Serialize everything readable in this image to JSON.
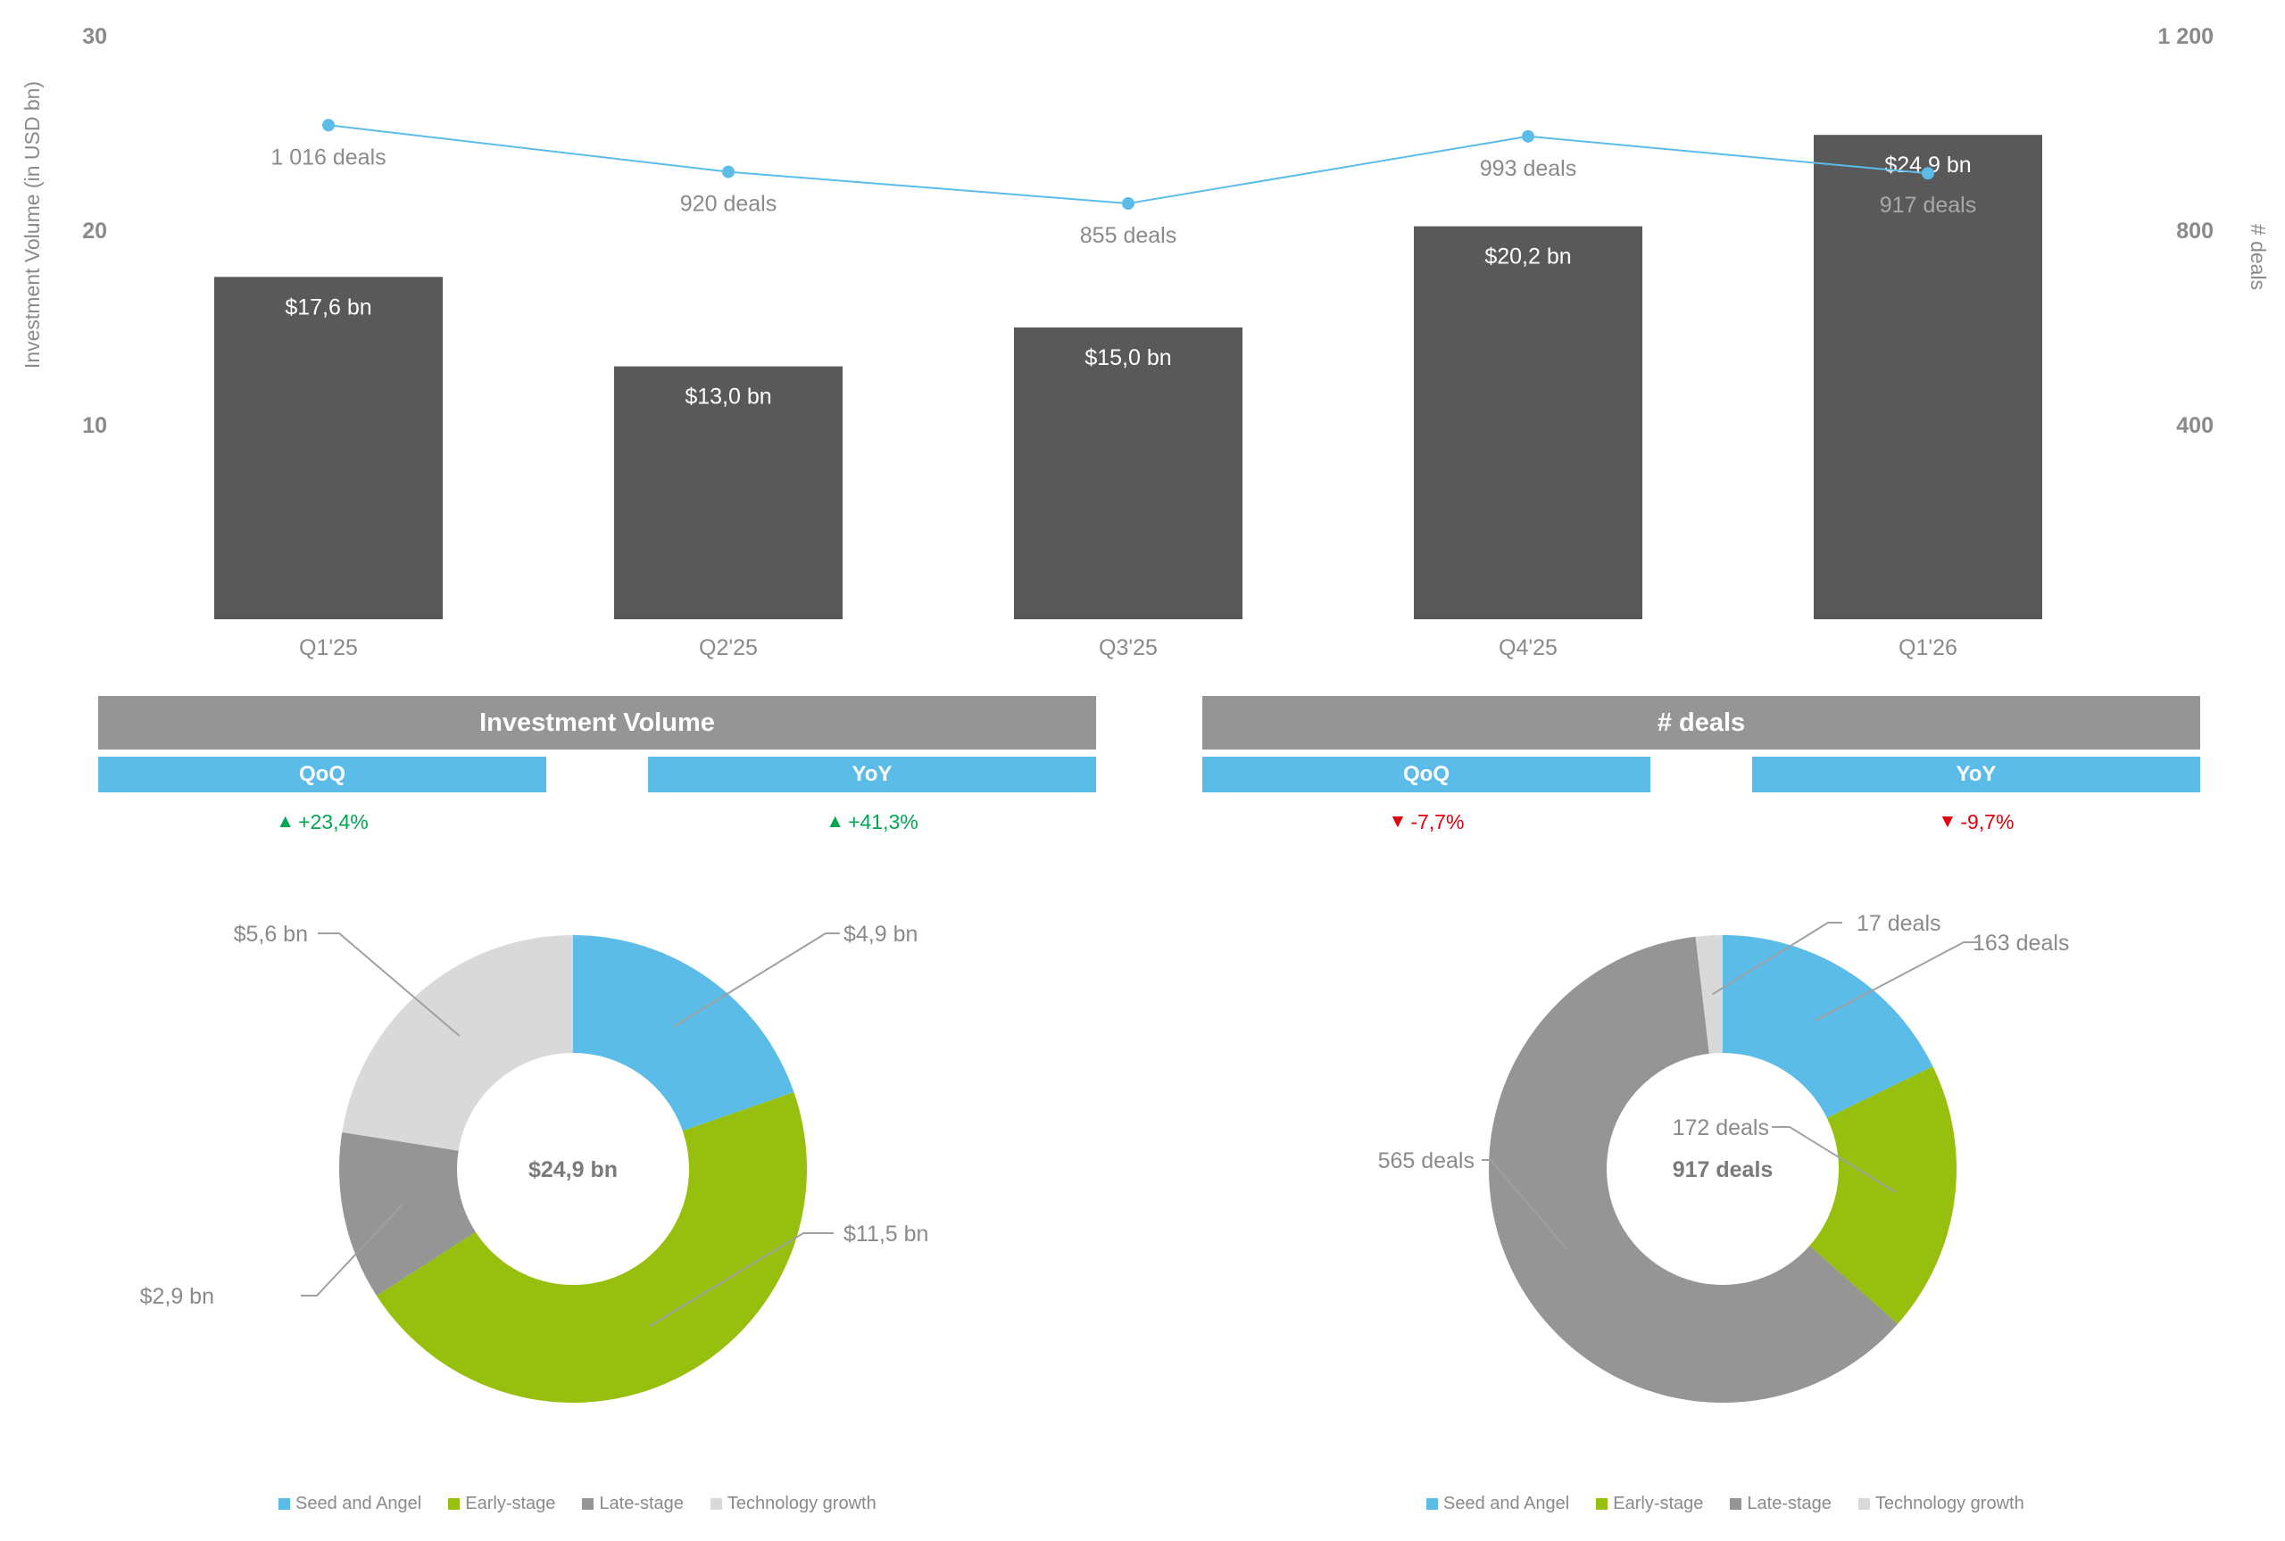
{
  "chart_data": [
    {
      "type": "bar",
      "categories": [
        "Q1'25",
        "Q2'25",
        "Q3'25",
        "Q4'25",
        "Q1'26"
      ],
      "ylabel": "Investment Volume (in USD bn)",
      "y2label": "# deals",
      "ylim": [
        0,
        30
      ],
      "y2lim": [
        0,
        1200
      ],
      "yticks": [
        "10",
        "20",
        "30"
      ],
      "y2ticks": [
        "400",
        "800",
        "1 200"
      ],
      "series": [
        {
          "type": "bar",
          "values": [
            17.6,
            13.0,
            15.0,
            20.2,
            24.9
          ],
          "labels": [
            "$17,6 bn",
            "$13,0 bn",
            "$15,0 bn",
            "$20,2 bn",
            "$24,9 bn"
          ]
        },
        {
          "type": "line",
          "axis": "right",
          "values": [
            1016,
            920,
            855,
            993,
            917
          ],
          "labels": [
            "1 016 deals",
            "920 deals",
            "855 deals",
            "993 deals",
            "917 deals"
          ]
        }
      ],
      "colors": {
        "bar": "#595959",
        "line": "#5bbce8"
      }
    },
    {
      "type": "pie",
      "variant": "donut",
      "center_label": "$24,9 bn",
      "slices": [
        {
          "name": "Seed and Angel",
          "value": 4.9,
          "label": "$4,9 bn",
          "color": "#5bbce8"
        },
        {
          "name": "Early-stage",
          "value": 11.5,
          "label": "$11,5 bn",
          "color": "#97bf0d"
        },
        {
          "name": "Late-stage",
          "value": 2.9,
          "label": "$2,9 bn",
          "color": "#959595"
        },
        {
          "name": "Technology growth",
          "value": 5.6,
          "label": "$5,6 bn",
          "color": "#d9d9d9"
        }
      ]
    },
    {
      "type": "pie",
      "variant": "donut",
      "center_label": "917 deals",
      "slices": [
        {
          "name": "Seed and Angel",
          "value": 163,
          "label": "163 deals",
          "color": "#5bbce8"
        },
        {
          "name": "Early-stage",
          "value": 172,
          "label": "172 deals",
          "color": "#97bf0d"
        },
        {
          "name": "Late-stage",
          "value": 565,
          "label": "565 deals",
          "color": "#959595"
        },
        {
          "name": "Technology growth",
          "value": 17,
          "label": "17 deals",
          "color": "#d9d9d9"
        }
      ]
    }
  ],
  "kpi": {
    "volume": {
      "title": "Investment Volume",
      "qoq_label": "QoQ",
      "yoy_label": "YoY",
      "qoq_value": "+23,4%",
      "yoy_value": "+41,3%",
      "qoq_dir": "up",
      "yoy_dir": "up"
    },
    "deals": {
      "title": "# deals",
      "qoq_label": "QoQ",
      "yoy_label": "YoY",
      "qoq_value": "-7,7%",
      "yoy_value": "-9,7%",
      "qoq_dir": "down",
      "yoy_dir": "down"
    },
    "arrow_up": "▲",
    "arrow_down": "▼",
    "up_color": "#00a651",
    "down_color": "#e3000f"
  },
  "legend": [
    {
      "name": "Seed and Angel",
      "color": "#5bbce8"
    },
    {
      "name": "Early-stage",
      "color": "#97bf0d"
    },
    {
      "name": "Late-stage",
      "color": "#959595"
    },
    {
      "name": "Technology growth",
      "color": "#d9d9d9"
    }
  ]
}
